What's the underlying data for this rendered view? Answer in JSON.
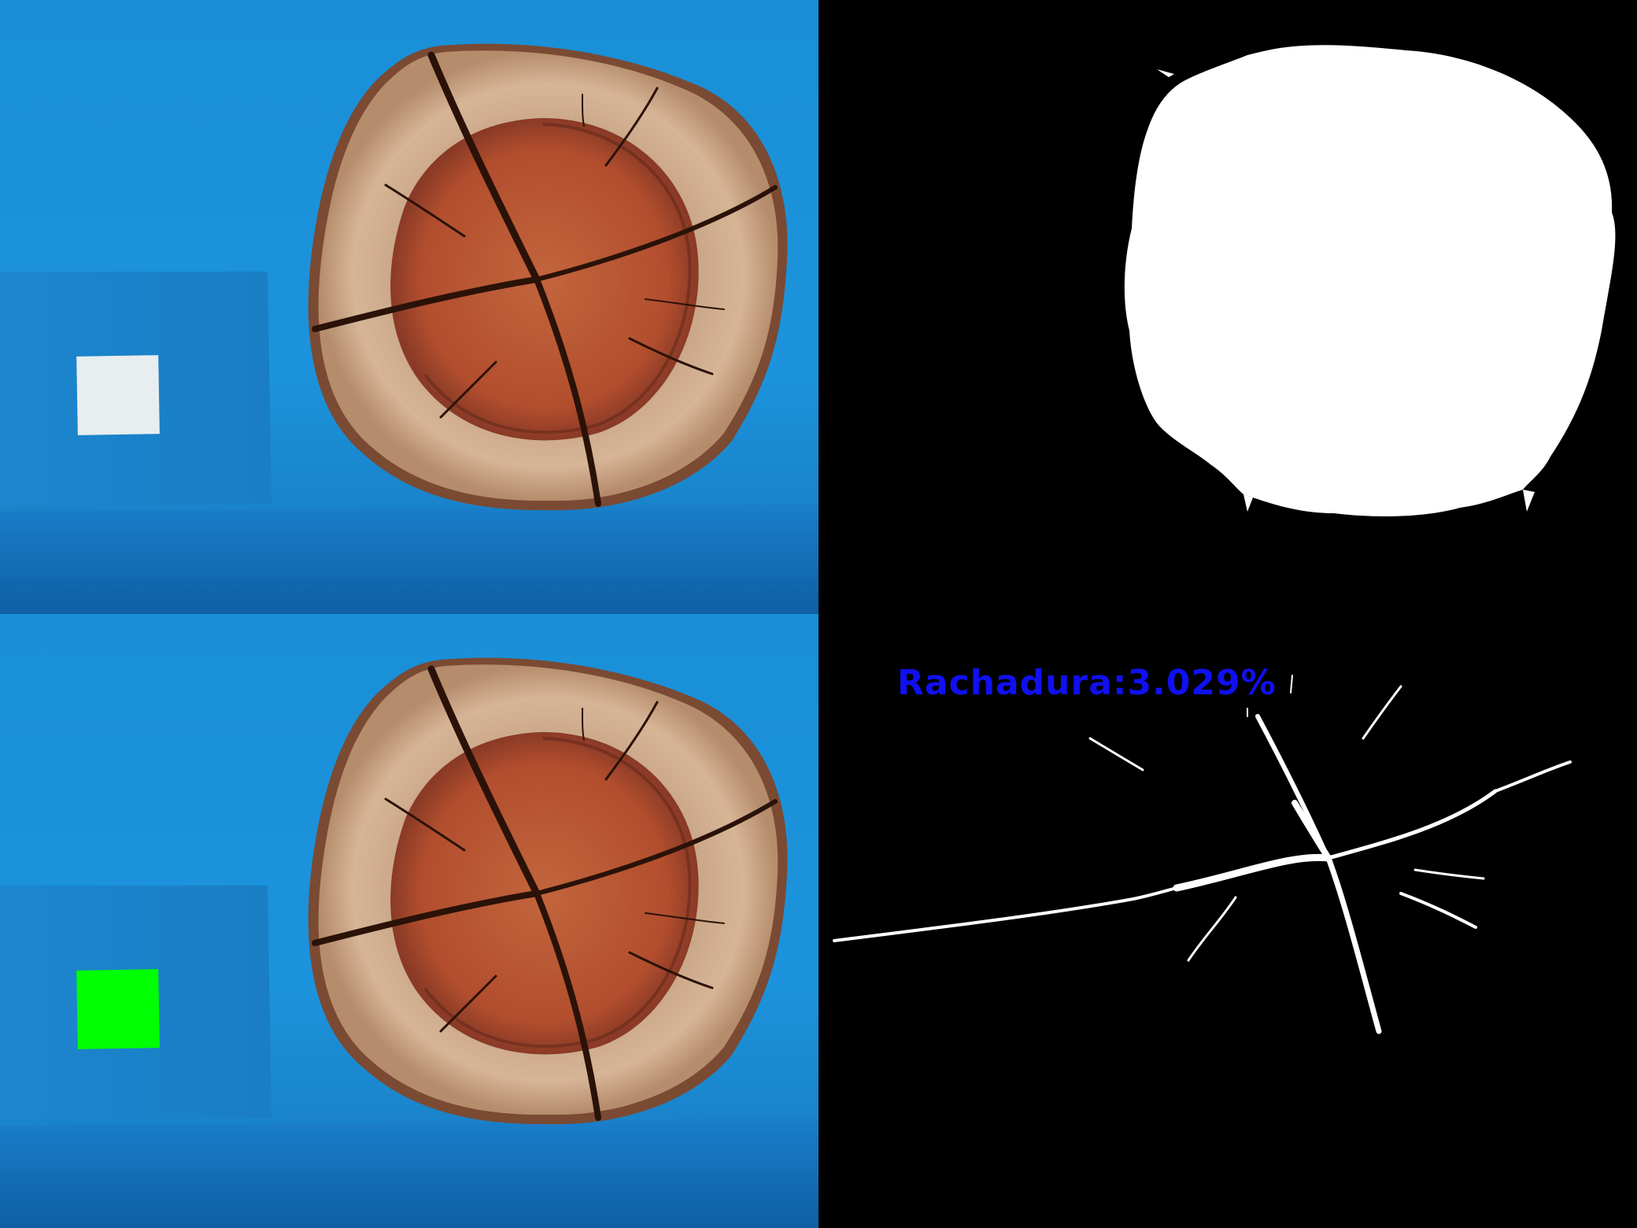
{
  "panels": {
    "original_photo": "original-photo",
    "detected_photo": "reference-marked-photo",
    "log_mask": "log-segmentation-mask",
    "crack_mask": "crack-segmentation-mask"
  },
  "colors": {
    "background_blue": "#1a8fd8",
    "reference_card_white": "#e8eef0",
    "reference_card_detected": "#00ff00",
    "heartwood": "#b4502f",
    "sapwood": "#c9a483",
    "bark": "#7a4a33",
    "label_blue": "#1010f0"
  },
  "result": {
    "crack_label": "Rachadura:3.029%"
  }
}
